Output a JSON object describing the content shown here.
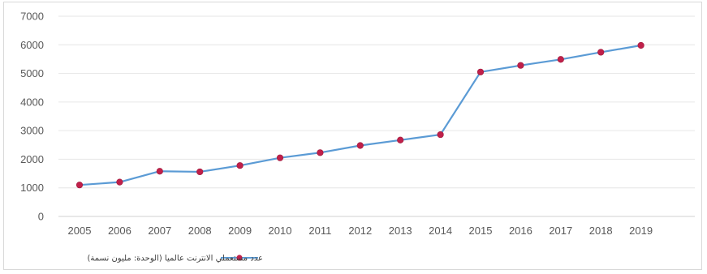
{
  "chart_data": {
    "type": "line",
    "title": "",
    "xlabel": "",
    "ylabel": "",
    "x": [
      "2005",
      "2006",
      "2007",
      "2008",
      "2009",
      "2010",
      "2011",
      "2012",
      "2013",
      "2014",
      "2015",
      "2016",
      "2017",
      "2018",
      "2019"
    ],
    "series": [
      {
        "name": "عدد مستعملي الانترنت عالميا (الوحدة: مليون نسمة)",
        "values": [
          1100,
          1200,
          1580,
          1560,
          1780,
          2050,
          2230,
          2480,
          2670,
          2860,
          5050,
          5280,
          5490,
          5740,
          5980
        ],
        "line_color": "#5b9bd5",
        "marker_color": "#c0204a"
      }
    ],
    "ylim": [
      0,
      7000
    ],
    "yticks": [
      "0",
      "1000",
      "2000",
      "3000",
      "4000",
      "5000",
      "6000",
      "7000"
    ],
    "grid": "horizontal",
    "legend": "bottom-center"
  }
}
